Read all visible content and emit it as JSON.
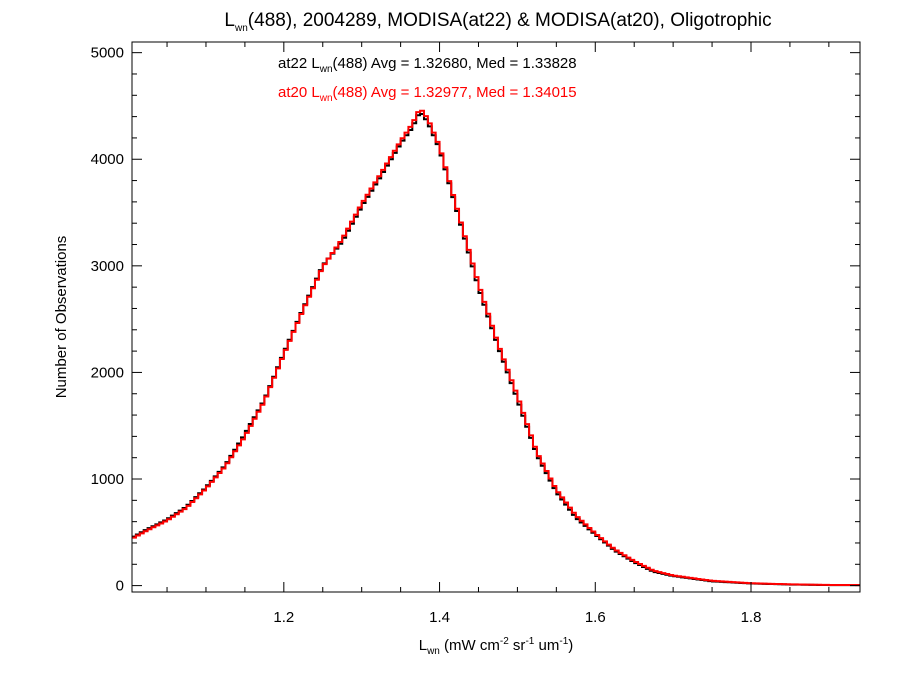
{
  "chart_data": {
    "type": "line",
    "style": "step",
    "title": {
      "main": "L",
      "sub": "wn",
      "rest": "(488), 2004289, MODISA(at22) & MODISA(at20), Oligotrophic"
    },
    "xlabel": {
      "main": "L",
      "sub": "wn",
      "rest": " (mW cm",
      "sup1": "-2",
      "mid": " sr",
      "sup2": "-1",
      "mid2": " um",
      "sup3": "-1",
      "end": ")"
    },
    "ylabel": "Number of Observations",
    "xlim": [
      1.005,
      1.94
    ],
    "ylim": [
      -60,
      5100
    ],
    "xticks": [
      1.2,
      1.4,
      1.6,
      1.8
    ],
    "xtick_labels": [
      "1.2",
      "1.4",
      "1.6",
      "1.8"
    ],
    "yticks": [
      0,
      1000,
      2000,
      3000,
      4000,
      5000
    ],
    "ytick_labels": [
      "0",
      "1000",
      "2000",
      "3000",
      "4000",
      "5000"
    ],
    "x_minor_step": 0.05,
    "y_minor_step": 200,
    "bin_width": 0.005,
    "grid": false,
    "annotations": [
      {
        "series": "at22",
        "prefix": "at22 L",
        "sub": "wn",
        "text": "(488) Avg = 1.32680, Med = 1.33828",
        "color": "#000000"
      },
      {
        "series": "at20",
        "prefix": "at20 L",
        "sub": "wn",
        "text": "(488) Avg = 1.32977, Med = 1.34015",
        "color": "#ff0000"
      }
    ],
    "series": [
      {
        "key": "at22",
        "color": "#000000",
        "x": [
          1.0,
          1.025,
          1.05,
          1.075,
          1.1,
          1.125,
          1.15,
          1.175,
          1.2,
          1.225,
          1.25,
          1.275,
          1.3,
          1.325,
          1.35,
          1.365,
          1.375,
          1.385,
          1.4,
          1.425,
          1.45,
          1.475,
          1.5,
          1.525,
          1.55,
          1.575,
          1.6,
          1.625,
          1.65,
          1.675,
          1.7,
          1.75,
          1.8,
          1.85,
          1.9,
          1.94
        ],
        "y": [
          430,
          530,
          620,
          740,
          920,
          1130,
          1420,
          1740,
          2180,
          2600,
          3000,
          3230,
          3560,
          3850,
          4150,
          4300,
          4450,
          4350,
          4100,
          3450,
          2800,
          2250,
          1750,
          1230,
          880,
          640,
          480,
          330,
          220,
          130,
          90,
          40,
          20,
          10,
          5,
          5
        ]
      },
      {
        "key": "at20",
        "color": "#ff0000",
        "x": [
          1.0,
          1.025,
          1.05,
          1.075,
          1.1,
          1.125,
          1.15,
          1.175,
          1.2,
          1.225,
          1.25,
          1.275,
          1.3,
          1.325,
          1.35,
          1.365,
          1.375,
          1.385,
          1.4,
          1.425,
          1.45,
          1.475,
          1.5,
          1.525,
          1.55,
          1.575,
          1.6,
          1.625,
          1.65,
          1.675,
          1.7,
          1.75,
          1.8,
          1.85,
          1.9,
          1.94
        ],
        "y": [
          420,
          520,
          610,
          730,
          910,
          1120,
          1400,
          1730,
          2170,
          2590,
          2990,
          3250,
          3580,
          3870,
          4170,
          4330,
          4480,
          4380,
          4120,
          3470,
          2830,
          2270,
          1780,
          1250,
          900,
          660,
          490,
          340,
          230,
          140,
          95,
          45,
          22,
          12,
          6,
          5
        ]
      }
    ]
  }
}
